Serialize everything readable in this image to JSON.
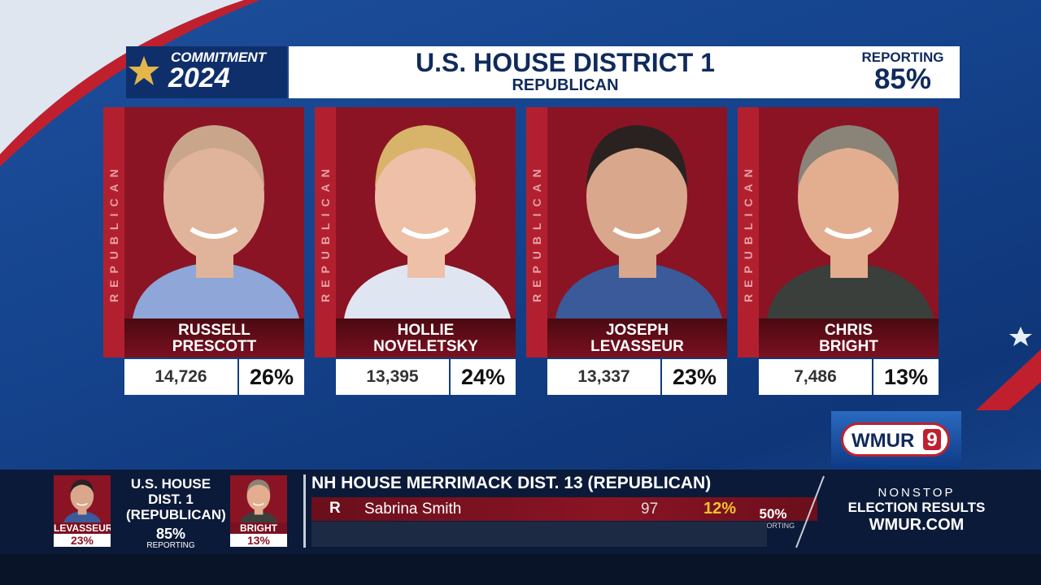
{
  "brand": {
    "line1": "COMMITMENT",
    "line2": "2024"
  },
  "header": {
    "title": "U.S. HOUSE DISTRICT 1",
    "subtitle": "REPUBLICAN",
    "reporting_label": "REPORTING",
    "reporting_value": "85%"
  },
  "candidates": [
    {
      "party": "REPUBLICAN",
      "first": "RUSSELL",
      "last": "PRESCOTT",
      "votes": "14,726",
      "percent": "26%"
    },
    {
      "party": "REPUBLICAN",
      "first": "HOLLIE",
      "last": "NOVELETSKY",
      "votes": "13,395",
      "percent": "24%"
    },
    {
      "party": "REPUBLICAN",
      "first": "JOSEPH",
      "last": "LEVASSEUR",
      "votes": "13,337",
      "percent": "23%"
    },
    {
      "party": "REPUBLICAN",
      "first": "CHRIS",
      "last": "BRIGHT",
      "votes": "7,486",
      "percent": "13%"
    }
  ],
  "logo": {
    "name": "WMUR",
    "channel": "9"
  },
  "ticker": {
    "summary": {
      "title": [
        "U.S. HOUSE",
        "DIST. 1",
        "(REPUBLICAN)"
      ],
      "reporting_value": "85%",
      "reporting_label": "REPORTING",
      "candidates": [
        {
          "name": "LEVASSEUR",
          "percent": "23%"
        },
        {
          "name": "BRIGHT",
          "percent": "13%"
        }
      ]
    },
    "race": {
      "title": "NH HOUSE MERRIMACK DIST. 13 (REPUBLICAN)",
      "party": "R",
      "name": "Sabrina Smith",
      "votes": "97",
      "percent": "12%",
      "reporting_value": "50%",
      "reporting_label": "REPORTING"
    },
    "promo": {
      "line1": "NONSTOP",
      "line2": "ELECTION RESULTS",
      "line3": "WMUR.COM"
    }
  }
}
